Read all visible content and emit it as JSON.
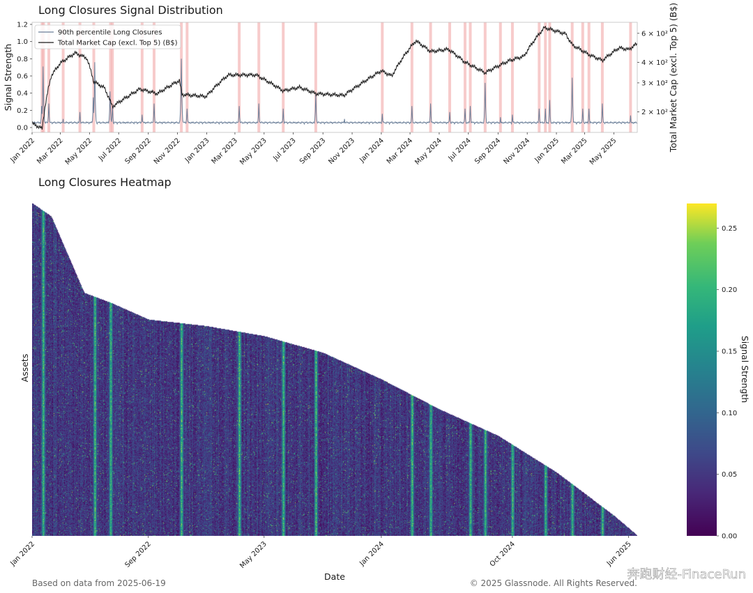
{
  "chart_data": [
    {
      "type": "line",
      "title": "Long Closures Signal Distribution",
      "ylabel": "Signal Strength",
      "y2label": "Total Market Cap (excl. Top 5) (B$)",
      "ylim": [
        0,
        1.2
      ],
      "yticks": [
        "0.0",
        "0.2",
        "0.4",
        "0.6",
        "0.8",
        "1.0",
        "1.2"
      ],
      "y2_scale": "log",
      "y2_ticks": [
        {
          "value": 200,
          "label": "2 × 10²"
        },
        {
          "value": 300,
          "label": "3 × 10²"
        },
        {
          "value": 400,
          "label": "4 × 10²"
        },
        {
          "value": 600,
          "label": "6 × 10²"
        }
      ],
      "x_range": [
        "2022-01-01",
        "2025-06-19"
      ],
      "xticks": [
        "Jan 2022",
        "Mar 2022",
        "May 2022",
        "Jul 2022",
        "Sep 2022",
        "Nov 2022",
        "Jan 2023",
        "Mar 2023",
        "May 2023",
        "Jul 2023",
        "Sep 2023",
        "Nov 2023",
        "Jan 2024",
        "Mar 2024",
        "May 2024",
        "Jul 2024",
        "Sep 2024",
        "Nov 2024",
        "Jan 2025",
        "Mar 2025",
        "May 2025"
      ],
      "legend_position": "top-left",
      "grid": false,
      "series": [
        {
          "name": "90th percentile Long Closures",
          "color": "#6b7f99",
          "peaks": [
            {
              "x": "2022-01-21",
              "y": 0.25
            },
            {
              "x": "2022-01-24",
              "y": 0.71
            },
            {
              "x": "2022-02-05",
              "y": 0.28
            },
            {
              "x": "2022-03-07",
              "y": 0.1
            },
            {
              "x": "2022-04-11",
              "y": 0.18
            },
            {
              "x": "2022-05-09",
              "y": 0.35
            },
            {
              "x": "2022-05-12",
              "y": 0.76
            },
            {
              "x": "2022-06-13",
              "y": 0.42
            },
            {
              "x": "2022-06-18",
              "y": 0.25
            },
            {
              "x": "2022-08-19",
              "y": 0.15
            },
            {
              "x": "2022-09-13",
              "y": 0.28
            },
            {
              "x": "2022-11-09",
              "y": 0.8
            },
            {
              "x": "2022-11-21",
              "y": 0.22
            },
            {
              "x": "2023-03-10",
              "y": 0.25
            },
            {
              "x": "2023-04-20",
              "y": 0.28
            },
            {
              "x": "2023-06-10",
              "y": 0.22
            },
            {
              "x": "2023-08-17",
              "y": 0.4
            },
            {
              "x": "2023-10-16",
              "y": 0.1
            },
            {
              "x": "2024-01-03",
              "y": 0.16
            },
            {
              "x": "2024-03-05",
              "y": 0.25
            },
            {
              "x": "2024-04-13",
              "y": 0.28
            },
            {
              "x": "2024-05-23",
              "y": 0.18
            },
            {
              "x": "2024-06-24",
              "y": 0.22
            },
            {
              "x": "2024-07-05",
              "y": 0.25
            },
            {
              "x": "2024-08-05",
              "y": 0.52
            },
            {
              "x": "2024-09-06",
              "y": 0.12
            },
            {
              "x": "2024-10-01",
              "y": 0.15
            },
            {
              "x": "2024-11-26",
              "y": 0.22
            },
            {
              "x": "2024-12-09",
              "y": 0.22
            },
            {
              "x": "2024-12-18",
              "y": 0.32
            },
            {
              "x": "2025-02-03",
              "y": 0.58
            },
            {
              "x": "2025-02-25",
              "y": 0.22
            },
            {
              "x": "2025-03-10",
              "y": 0.22
            },
            {
              "x": "2025-04-07",
              "y": 0.28
            },
            {
              "x": "2025-06-05",
              "y": 0.14
            }
          ]
        },
        {
          "name": "Total Market Cap (excl. Top 5) (B$)",
          "color": "#1a1a1a",
          "points": [
            {
              "x": "2022-01-01",
              "y": 170
            },
            {
              "x": "2022-01-22",
              "y": 158
            },
            {
              "x": "2022-02-10",
              "y": 330
            },
            {
              "x": "2022-03-01",
              "y": 395
            },
            {
              "x": "2022-04-01",
              "y": 455
            },
            {
              "x": "2022-04-25",
              "y": 425
            },
            {
              "x": "2022-05-10",
              "y": 305
            },
            {
              "x": "2022-06-01",
              "y": 280
            },
            {
              "x": "2022-06-18",
              "y": 215
            },
            {
              "x": "2022-07-20",
              "y": 248
            },
            {
              "x": "2022-08-14",
              "y": 275
            },
            {
              "x": "2022-09-20",
              "y": 258
            },
            {
              "x": "2022-11-05",
              "y": 310
            },
            {
              "x": "2022-11-10",
              "y": 255
            },
            {
              "x": "2022-12-31",
              "y": 248
            },
            {
              "x": "2023-02-15",
              "y": 335
            },
            {
              "x": "2023-04-14",
              "y": 335
            },
            {
              "x": "2023-06-10",
              "y": 268
            },
            {
              "x": "2023-07-14",
              "y": 282
            },
            {
              "x": "2023-08-17",
              "y": 258
            },
            {
              "x": "2023-10-15",
              "y": 252
            },
            {
              "x": "2023-11-15",
              "y": 290
            },
            {
              "x": "2024-01-01",
              "y": 355
            },
            {
              "x": "2024-01-23",
              "y": 330
            },
            {
              "x": "2024-03-13",
              "y": 540
            },
            {
              "x": "2024-04-13",
              "y": 465
            },
            {
              "x": "2024-05-20",
              "y": 480
            },
            {
              "x": "2024-06-24",
              "y": 400
            },
            {
              "x": "2024-08-05",
              "y": 345
            },
            {
              "x": "2024-09-25",
              "y": 410
            },
            {
              "x": "2024-10-25",
              "y": 435
            },
            {
              "x": "2024-12-07",
              "y": 650
            },
            {
              "x": "2025-01-20",
              "y": 595
            },
            {
              "x": "2025-02-03",
              "y": 510
            },
            {
              "x": "2025-03-10",
              "y": 445
            },
            {
              "x": "2025-04-07",
              "y": 410
            },
            {
              "x": "2025-05-12",
              "y": 490
            },
            {
              "x": "2025-06-01",
              "y": 478
            },
            {
              "x": "2025-06-19",
              "y": 520
            }
          ]
        }
      ],
      "highlighted_dates": [
        "2022-01-22",
        "2022-01-25",
        "2022-02-05",
        "2022-03-07",
        "2022-04-11",
        "2022-05-10",
        "2022-06-14",
        "2022-06-18",
        "2022-08-19",
        "2022-09-13",
        "2022-11-09",
        "2022-11-21",
        "2023-03-10",
        "2023-04-20",
        "2023-06-10",
        "2023-08-17",
        "2024-01-03",
        "2024-03-05",
        "2024-04-13",
        "2024-05-23",
        "2024-06-24",
        "2024-07-05",
        "2024-08-05",
        "2024-09-06",
        "2024-10-01",
        "2024-11-26",
        "2024-12-09",
        "2024-12-18",
        "2025-02-03",
        "2025-02-25",
        "2025-03-10",
        "2025-04-07",
        "2025-06-05"
      ],
      "highlight_color": "#f2a8a8"
    },
    {
      "type": "heatmap",
      "title": "Long Closures Heatmap",
      "xlabel": "Date",
      "ylabel": "Assets",
      "xticks": [
        "Jan 2022",
        "Sep 2022",
        "May 2023",
        "Jan 2024",
        "Oct 2024",
        "Jun 2025"
      ],
      "colormap": "viridis",
      "colorbar_label": "Signal Strength",
      "colorbar_range": [
        0,
        0.27
      ],
      "colorbar_ticks": [
        "0.00",
        "0.05",
        "0.10",
        "0.15",
        "0.20",
        "0.25"
      ],
      "high_signal_dates": [
        "2022-01-24",
        "2022-05-12",
        "2022-06-14",
        "2022-11-09",
        "2023-03-10",
        "2023-06-10",
        "2023-08-17",
        "2024-03-05",
        "2024-04-13",
        "2024-07-05",
        "2024-08-05",
        "2024-10-01",
        "2024-12-09",
        "2025-02-03",
        "2025-04-07"
      ],
      "asset_listing": [
        {
          "x": "2022-01-01",
          "asset_rows_active_fraction": 1.0
        },
        {
          "x": "2022-02-10",
          "asset_rows_active_fraction": 0.96
        },
        {
          "x": "2022-04-20",
          "asset_rows_active_fraction": 0.73
        },
        {
          "x": "2022-06-15",
          "asset_rows_active_fraction": 0.7
        },
        {
          "x": "2022-09-01",
          "asset_rows_active_fraction": 0.65
        },
        {
          "x": "2023-01-01",
          "asset_rows_active_fraction": 0.63
        },
        {
          "x": "2023-05-01",
          "asset_rows_active_fraction": 0.6
        },
        {
          "x": "2023-09-01",
          "asset_rows_active_fraction": 0.55
        },
        {
          "x": "2024-01-01",
          "asset_rows_active_fraction": 0.47
        },
        {
          "x": "2024-05-01",
          "asset_rows_active_fraction": 0.38
        },
        {
          "x": "2024-09-01",
          "asset_rows_active_fraction": 0.3
        },
        {
          "x": "2025-01-01",
          "asset_rows_active_fraction": 0.19
        },
        {
          "x": "2025-05-01",
          "asset_rows_active_fraction": 0.06
        },
        {
          "x": "2025-06-19",
          "asset_rows_active_fraction": 0.0
        }
      ]
    }
  ],
  "footer": {
    "left": "Based on data from 2025-06-19",
    "right": "© 2025 Glassnode. All Rights Reserved."
  },
  "watermark": {
    "main": "glassnode",
    "corner": "奔跑财经-FinaceRun"
  }
}
